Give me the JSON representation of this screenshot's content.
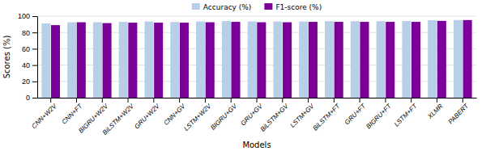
{
  "chart_data": {
    "type": "bar",
    "categories": [
      "CNN+W2V",
      "CNN+FT",
      "BIGRU+W2V",
      "BiLSTM+W2V",
      "GRU+W2V",
      "CNN+GV",
      "LSTM+W2V",
      "BIGRU+GV",
      "GRU+GV",
      "BiLSTM+GV",
      "LSTM+GV",
      "BiLSTM+FT",
      "GRU+FT",
      "BIGRU+FT",
      "LSTM+FT",
      "XLMR",
      "PABERT"
    ],
    "series": [
      {
        "name": "Accuracy (%)",
        "color": "#b8cfe8",
        "values": [
          91.0,
          92.5,
          92.5,
          93.0,
          93.5,
          92.8,
          93.5,
          94.0,
          93.5,
          93.5,
          93.5,
          93.8,
          93.8,
          93.8,
          94.0,
          95.0,
          95.2
        ]
      },
      {
        "name": "F1-score (%)",
        "color": "#7b0099",
        "values": [
          89.0,
          92.5,
          91.5,
          92.0,
          92.0,
          92.0,
          92.5,
          93.0,
          92.5,
          92.5,
          93.0,
          93.0,
          93.0,
          93.0,
          93.0,
          94.2,
          95.2
        ]
      }
    ],
    "xlabel": "Models",
    "ylabel": "Scores (%)",
    "ylim": [
      0,
      100
    ],
    "yticks": [
      0,
      20,
      40,
      60,
      80,
      100
    ],
    "grid": true,
    "legend": "top"
  }
}
